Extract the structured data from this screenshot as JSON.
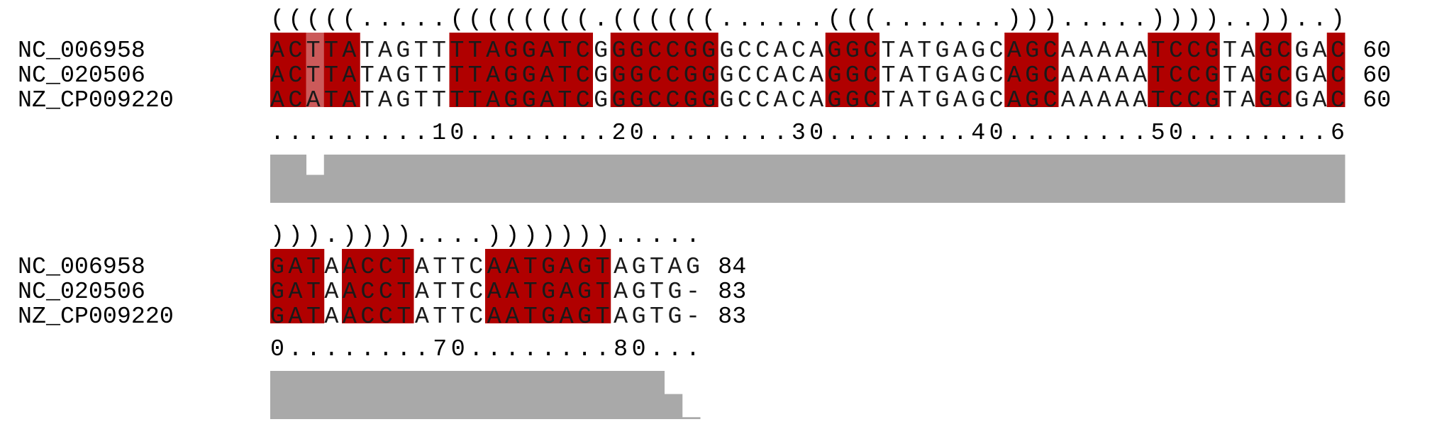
{
  "colors": {
    "paired": "#b00000",
    "paired_partial": "#cc5a5a",
    "conservation_bar": "#a9a9a9",
    "text": "#000000"
  },
  "blocks": [
    {
      "structure": "(((((.....((((((((.((((((......(((.......))).....))))..))..)",
      "numbering": ".........10........20........30........40........50........6",
      "rows": [
        {
          "name": "NC_006958",
          "seq": "ACTTATAGTTTTAGGATCGGGCCGGGCCACAGGCTATGAGCAGCAAAAATCCGTAGCGAC",
          "end": "60"
        },
        {
          "name": "NC_020506",
          "seq": "ACTTATAGTTTTAGGATCGGGCCGGGCCACAGGCTATGAGCAGCAAAAATCCGTAGCGAC",
          "end": "60"
        },
        {
          "name": "NZ_CP009220",
          "seq": "ACATATAGTTTTAGGATCGGGCCGGGCCACAGGCTATGAGCAGCAAAAATCCGTAGCGAC",
          "end": "60"
        }
      ],
      "conservation": [
        1,
        1,
        0.58,
        1,
        1,
        1,
        1,
        1,
        1,
        1,
        1,
        1,
        1,
        1,
        1,
        1,
        1,
        1,
        1,
        1,
        1,
        1,
        1,
        1,
        1,
        1,
        1,
        1,
        1,
        1,
        1,
        1,
        1,
        1,
        1,
        1,
        1,
        1,
        1,
        1,
        1,
        1,
        1,
        1,
        1,
        1,
        1,
        1,
        1,
        1,
        1,
        1,
        1,
        1,
        1,
        1,
        1,
        1,
        1,
        1
      ]
    },
    {
      "structure": "))).))))....))))))).....",
      "numbering": "0........70........80...",
      "rows": [
        {
          "name": "NC_006958",
          "seq": "GATAACCTATTCAATGAGTAGTAG",
          "end": "84"
        },
        {
          "name": "NC_020506",
          "seq": "GATAACCTATTCAATGAGTAGTG-",
          "end": "83"
        },
        {
          "name": "NZ_CP009220",
          "seq": "GATAACCTATTCAATGAGTAGTG-",
          "end": "83"
        }
      ],
      "conservation": [
        1,
        1,
        1,
        1,
        1,
        1,
        1,
        1,
        1,
        1,
        1,
        1,
        1,
        1,
        1,
        1,
        1,
        1,
        1,
        1,
        1,
        1,
        0.52,
        0.04
      ]
    }
  ]
}
